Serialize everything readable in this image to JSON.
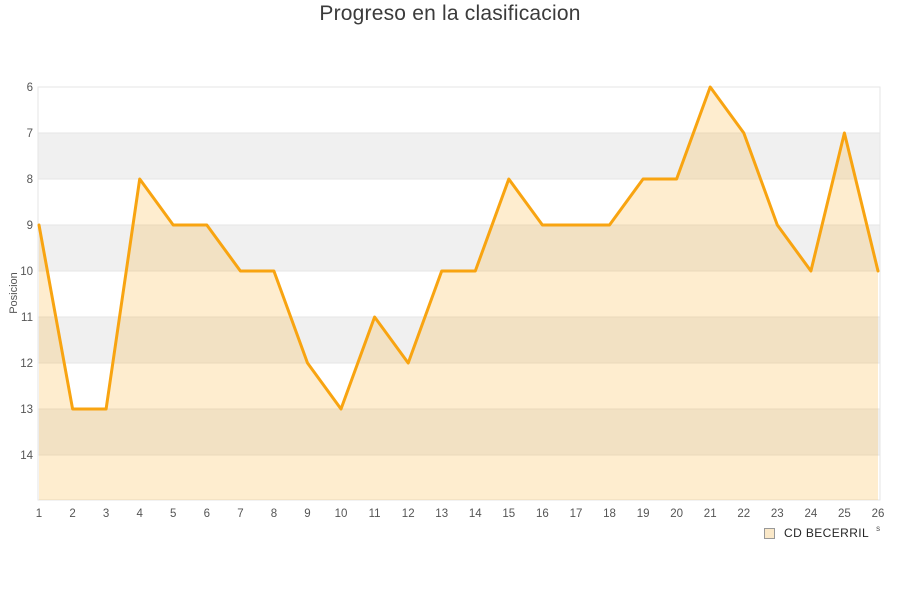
{
  "header": {
    "title": "Progreso en la clasificacion"
  },
  "legend": {
    "label": "CD BECERRIL",
    "suffix": "s"
  },
  "chart_data": {
    "type": "area",
    "title": "Progreso en la clasificacion",
    "xlabel": "",
    "ylabel": "Posicion",
    "x": [
      1,
      2,
      3,
      4,
      5,
      6,
      7,
      8,
      9,
      10,
      11,
      12,
      13,
      14,
      15,
      16,
      17,
      18,
      19,
      20,
      21,
      22,
      23,
      24,
      25,
      26
    ],
    "series": [
      {
        "name": "CD BECERRIL",
        "values": [
          9,
          13,
          13,
          8,
          9,
          9,
          10,
          10,
          12,
          13,
          11,
          12,
          10,
          10,
          8,
          9,
          9,
          9,
          8,
          8,
          6,
          7,
          9,
          10,
          7,
          10
        ],
        "line_color": "#f8a411",
        "fill_color": "rgba(248,164,17,0.20)"
      }
    ],
    "y_ticks": [
      6,
      7,
      8,
      9,
      10,
      11,
      12,
      13,
      14
    ],
    "ylim": [
      6,
      15
    ],
    "y_inverted": true,
    "grid": "horizontal-bands",
    "band_color": "#f0f0f0",
    "gridline_color": "#e6e6e6",
    "tick_color": "#555555",
    "legend_position": "bottom-right"
  }
}
